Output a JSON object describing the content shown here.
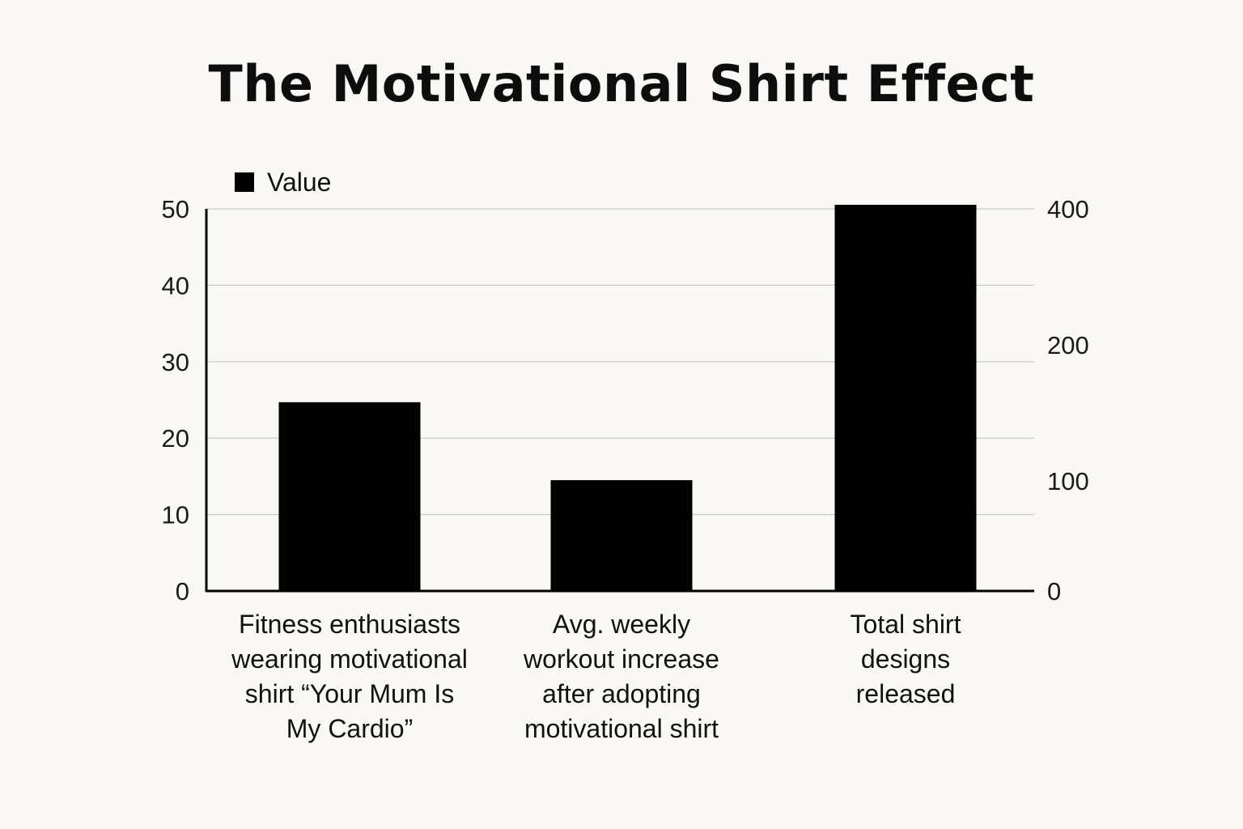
{
  "chart_data": {
    "type": "bar",
    "title": "The Motivational Shirt Effect",
    "legend": {
      "label": "Value",
      "placement": "top-left"
    },
    "categories": [
      "Fitness enthusiasts\nwearing motivational\nshirt “Your Mum Is\nMy Cardio”",
      "Avg. weekly\nworkout increase\nafter adopting\nmotivational shirt",
      "Total shirt\ndesigns\nreleased"
    ],
    "series": [
      {
        "values": [
          24.7,
          14.5,
          406
        ],
        "axes": [
          "left",
          "left",
          "right"
        ]
      }
    ],
    "y_left": {
      "ticks": [
        "0",
        "10",
        "20",
        "30",
        "40",
        "50"
      ],
      "ylim": [
        0,
        50
      ]
    },
    "y_right": {
      "ticks": [
        "0",
        "100",
        "200",
        "400"
      ],
      "ylim": [
        0,
        400
      ]
    },
    "grid": true,
    "bar_color": "#000000",
    "grid_color": "#c9c9c6"
  }
}
